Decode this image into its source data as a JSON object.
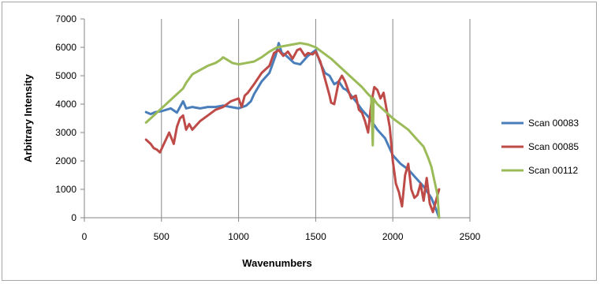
{
  "chart_data": {
    "type": "line",
    "title": "",
    "xlabel": "Wavenumbers",
    "ylabel": "Arbitrary Intensity",
    "xlim": [
      0,
      2500
    ],
    "ylim": [
      0,
      7000
    ],
    "x_ticks": [
      "0",
      "500",
      "1000",
      "1500",
      "2000",
      "2500"
    ],
    "y_ticks": [
      "0",
      "1000",
      "2000",
      "3000",
      "4000",
      "5000",
      "6000",
      "7000"
    ],
    "grid": "vertical",
    "legend": "right",
    "series": [
      {
        "name": "Scan 00083",
        "color": "#4a7ebb",
        "x": [
          400,
          430,
          460,
          500,
          530,
          560,
          600,
          640,
          660,
          700,
          750,
          800,
          850,
          900,
          950,
          1000,
          1050,
          1080,
          1100,
          1150,
          1200,
          1240,
          1260,
          1280,
          1300,
          1330,
          1360,
          1400,
          1450,
          1500,
          1530,
          1560,
          1590,
          1620,
          1650,
          1680,
          1700,
          1730,
          1760,
          1800,
          1850,
          1900,
          1950,
          2000,
          2050,
          2100,
          2150,
          2200,
          2250,
          2280,
          2300
        ],
        "y": [
          3720,
          3650,
          3720,
          3750,
          3800,
          3850,
          3700,
          4100,
          3850,
          3900,
          3850,
          3900,
          3900,
          3950,
          3900,
          3850,
          3950,
          4100,
          4350,
          4800,
          5100,
          5700,
          6150,
          5800,
          5750,
          5600,
          5450,
          5400,
          5700,
          5900,
          5450,
          5100,
          5000,
          4700,
          4800,
          4550,
          4500,
          4300,
          4100,
          3800,
          3500,
          3100,
          2800,
          2200,
          1900,
          1700,
          1400,
          1100,
          700,
          300,
          0
        ]
      },
      {
        "name": "Scan 00085",
        "color": "#be4b48",
        "x": [
          400,
          430,
          450,
          470,
          490,
          520,
          550,
          580,
          600,
          620,
          640,
          660,
          680,
          700,
          750,
          800,
          850,
          900,
          950,
          1000,
          1020,
          1040,
          1060,
          1100,
          1150,
          1200,
          1230,
          1260,
          1290,
          1320,
          1350,
          1380,
          1400,
          1430,
          1450,
          1480,
          1500,
          1530,
          1560,
          1590,
          1600,
          1620,
          1650,
          1670,
          1690,
          1710,
          1730,
          1760,
          1780,
          1800,
          1820,
          1840,
          1860,
          1880,
          1900,
          1920,
          1940,
          1960,
          1980,
          2000,
          2020,
          2040,
          2060,
          2080,
          2100,
          2120,
          2140,
          2160,
          2180,
          2200,
          2220,
          2240,
          2260,
          2280,
          2300
        ],
        "y": [
          2750,
          2600,
          2450,
          2400,
          2300,
          2650,
          3000,
          2600,
          3200,
          3500,
          3600,
          3100,
          3300,
          3100,
          3400,
          3600,
          3800,
          3900,
          4100,
          4200,
          3900,
          4300,
          4400,
          4700,
          5100,
          5350,
          5800,
          5900,
          5700,
          5850,
          5600,
          5900,
          5950,
          5700,
          5800,
          5750,
          5850,
          5500,
          4900,
          4300,
          4050,
          4000,
          4800,
          5000,
          4800,
          4500,
          4200,
          4300,
          3800,
          3700,
          3400,
          3000,
          4000,
          4600,
          4500,
          4200,
          4400,
          3800,
          3200,
          2000,
          1200,
          900,
          400,
          1500,
          1900,
          1000,
          700,
          800,
          1200,
          600,
          1400,
          500,
          200,
          600,
          1000
        ]
      },
      {
        "name": "Scan 00112",
        "color": "#9bbb59",
        "x": [
          400,
          430,
          460,
          490,
          520,
          550,
          580,
          610,
          640,
          660,
          680,
          700,
          750,
          800,
          850,
          880,
          900,
          930,
          960,
          1000,
          1050,
          1100,
          1150,
          1200,
          1250,
          1300,
          1350,
          1400,
          1450,
          1500,
          1550,
          1600,
          1650,
          1700,
          1750,
          1800,
          1840,
          1860,
          1870,
          1875,
          1880,
          1900,
          1950,
          2000,
          2050,
          2100,
          2150,
          2200,
          2230,
          2250,
          2270,
          2290,
          2300
        ],
        "y": [
          3350,
          3500,
          3650,
          3800,
          3950,
          4100,
          4250,
          4400,
          4550,
          4750,
          4900,
          5050,
          5200,
          5350,
          5450,
          5550,
          5650,
          5550,
          5450,
          5400,
          5450,
          5500,
          5650,
          5850,
          6000,
          6050,
          6100,
          6150,
          6100,
          6000,
          5800,
          5600,
          5350,
          5100,
          4850,
          4600,
          4350,
          4250,
          2550,
          4200,
          4150,
          4000,
          3750,
          3500,
          3300,
          3100,
          2800,
          2500,
          2100,
          1800,
          1300,
          800,
          0
        ]
      }
    ]
  }
}
